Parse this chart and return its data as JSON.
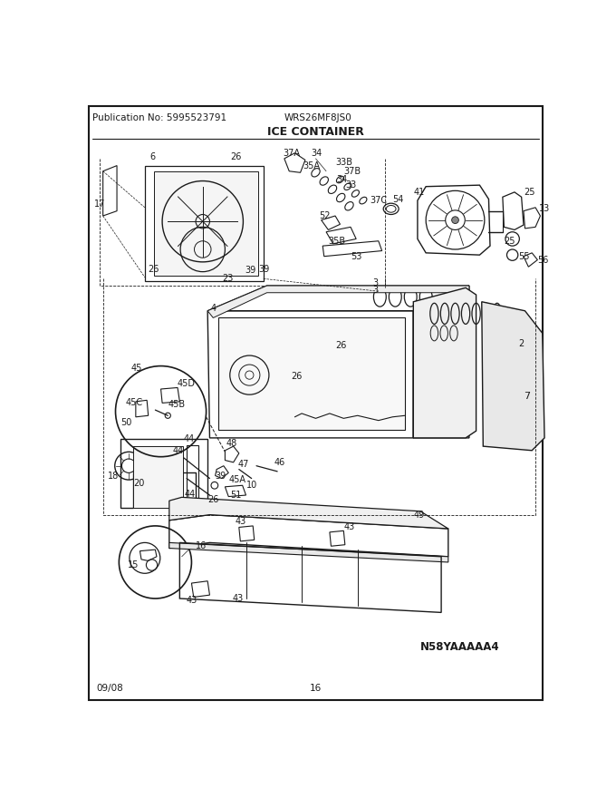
{
  "title": "ICE CONTAINER",
  "pub_no": "Publication No: 5995523791",
  "model": "WRS26MF8JS0",
  "diagram_id": "N58YAAAAA4",
  "date": "09/08",
  "page": "16",
  "border_color": "#000000",
  "bg_color": "#ffffff",
  "text_color": "#1a1a1a",
  "fig_width": 6.8,
  "fig_height": 8.8,
  "dpi": 100
}
